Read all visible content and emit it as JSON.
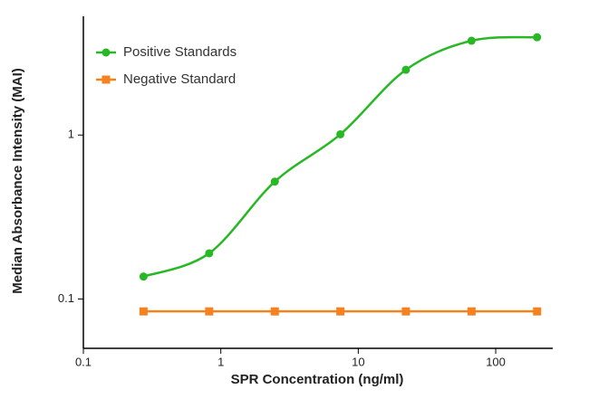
{
  "chart_data": {
    "type": "line",
    "x_label": "SPR Concentration (ng/ml)",
    "y_label": "Median Absorbance Intensity (MAI)",
    "x": [
      0.274,
      0.823,
      2.47,
      7.41,
      22.2,
      66.7,
      200
    ],
    "series": [
      {
        "name": "Positive Standards",
        "color": "#27b824",
        "marker": "circle",
        "smooth": true,
        "values": [
          0.137,
          0.19,
          0.52,
          1.01,
          2.5,
          3.76,
          3.95
        ]
      },
      {
        "name": "Negative Standard",
        "color": "#f5821f",
        "marker": "square",
        "smooth": false,
        "values": [
          0.084,
          0.084,
          0.084,
          0.084,
          0.084,
          0.084,
          0.084
        ]
      }
    ],
    "xlim": [
      0.1,
      260
    ],
    "ylim": [
      0.05,
      5.3
    ],
    "xticks": [
      0.1,
      1,
      10,
      100
    ],
    "yticks": [
      0.1,
      1
    ],
    "xscale": "log",
    "yscale": "log",
    "grid": false,
    "legend": "upper left"
  }
}
